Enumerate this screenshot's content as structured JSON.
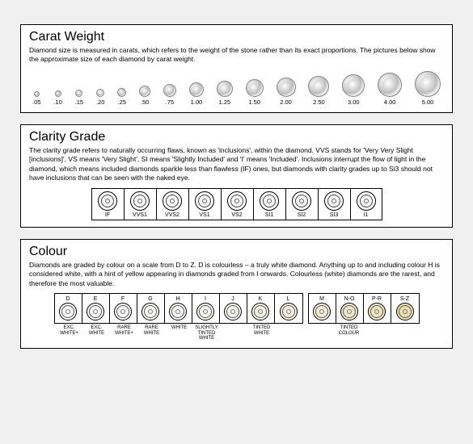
{
  "carat": {
    "title": "Carat Weight",
    "desc": "Diamond size is measured in carats, which refers to the weight of the stone rather than its exact proportions. The pictures below show the approximate size of each diamond by carat weight.",
    "items": [
      {
        "label": ".05",
        "size": 7
      },
      {
        "label": ".10",
        "size": 8
      },
      {
        "label": ".15",
        "size": 9
      },
      {
        "label": ".20",
        "size": 10
      },
      {
        "label": ".25",
        "size": 11
      },
      {
        "label": ".50",
        "size": 14
      },
      {
        "label": ".75",
        "size": 16
      },
      {
        "label": "1.00",
        "size": 18
      },
      {
        "label": "1.25",
        "size": 20
      },
      {
        "label": "1.50",
        "size": 22
      },
      {
        "label": "2.00",
        "size": 24
      },
      {
        "label": "2.50",
        "size": 26
      },
      {
        "label": "3.00",
        "size": 28
      },
      {
        "label": "4.00",
        "size": 30
      },
      {
        "label": "5.00",
        "size": 32
      }
    ]
  },
  "clarity": {
    "title": "Clarity Grade",
    "desc": "The clarity grade refers to naturally occurring flaws, known as 'inclusions', within the diamond.  VVS stands for 'Very Very Slight [inclusions]', VS means 'Very Slight', SI means 'Slightly Included' and 'I' means 'Included'. Inclusions interrupt the flow of light in the diamond, which means included diamonds sparkle less than flawless (IF) ones, but diamonds with clarity grades up to Si3 should not have inclusions that can be seen with the naked eye.",
    "items": [
      {
        "label": "IF"
      },
      {
        "label": "VVS1"
      },
      {
        "label": "VVS2"
      },
      {
        "label": "VS1"
      },
      {
        "label": "VS2"
      },
      {
        "label": "SI1"
      },
      {
        "label": "SI2"
      },
      {
        "label": "SI3"
      },
      {
        "label": "I1"
      }
    ]
  },
  "colour": {
    "title": "Colour",
    "desc": "Diamonds are graded by colour on a scale from D to Z. D is colourless – a truly white diamond. Anything up to and including colour H is considered white, with a hint of yellow appearing in diamonds graded from I onwards. Colourless (white) diamonds are the rarest, and therefore the most valuable.",
    "groups": [
      {
        "items": [
          {
            "letter": "D",
            "tint": "#ffffff",
            "footer": "EXC.\nWHITE+"
          },
          {
            "letter": "E",
            "tint": "#ffffff",
            "footer": "EXC.\nWHITE"
          },
          {
            "letter": "F",
            "tint": "#fefefe",
            "footer": "RARE\nWHITE+"
          },
          {
            "letter": "G",
            "tint": "#fefefd",
            "footer": "RARE\nWHITE"
          },
          {
            "letter": "H",
            "tint": "#fdfdfb",
            "footer": "WHITE"
          },
          {
            "letter": "I",
            "tint": "#fdfcf7",
            "footer": "SLIGHTLY TINTED\nWHITE"
          },
          {
            "letter": "J",
            "tint": "#fcfaf2",
            "footer": ""
          },
          {
            "letter": "K",
            "tint": "#fbf8ec",
            "footer": "TINTED WHITE"
          },
          {
            "letter": "L",
            "tint": "#faf5e5",
            "footer": ""
          }
        ]
      },
      {
        "items": [
          {
            "letter": "M",
            "tint": "#f9f2dd",
            "footer": ""
          },
          {
            "letter": "N-O",
            "tint": "#f7eed2",
            "footer": "TINTED COLOUR"
          },
          {
            "letter": "P-R",
            "tint": "#f5e9c5",
            "footer": ""
          },
          {
            "letter": "S-Z",
            "tint": "#f2e3b5",
            "footer": ""
          }
        ]
      }
    ]
  }
}
